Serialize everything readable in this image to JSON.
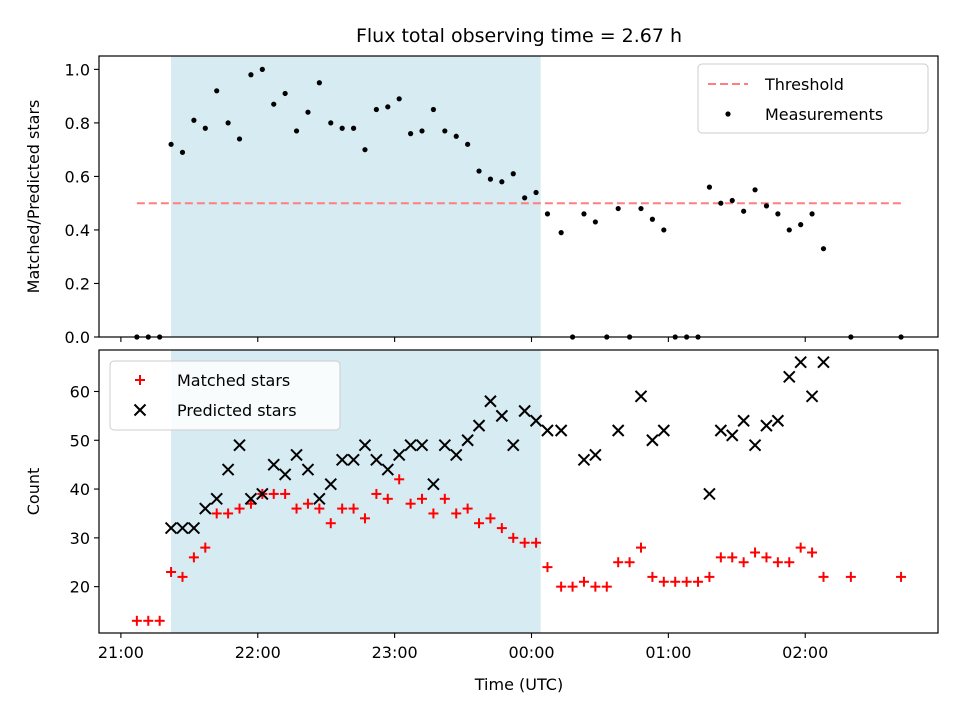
{
  "chart_data": {
    "title": "Flux total observing time = 2.67 h",
    "xlabel": "Time (UTC)",
    "x_ticks": [
      {
        "t": -3,
        "label": "21:00"
      },
      {
        "t": -2,
        "label": "22:00"
      },
      {
        "t": -1,
        "label": "23:00"
      },
      {
        "t": 0,
        "label": "00:00"
      },
      {
        "t": 1,
        "label": "01:00"
      },
      {
        "t": 2,
        "label": "02:00"
      }
    ],
    "xlim": [
      -3.16,
      2.97
    ],
    "observing_window": {
      "start": "21:22",
      "end": "00:04",
      "color": "#add8e6"
    },
    "panels": [
      {
        "type": "scatter",
        "ylabel": "Matched/Predicted stars",
        "ylim": [
          0,
          1.05
        ],
        "y_ticks": [
          "0.0",
          "0.2",
          "0.4",
          "0.6",
          "0.8",
          "1.0"
        ],
        "threshold": {
          "name": "Threshold",
          "value": 0.5,
          "x_range": [
            "21:07",
            "02:42"
          ],
          "color": "#ff7f7f"
        },
        "series": [
          {
            "name": "Measurements",
            "marker": "dot",
            "color": "#000000",
            "points": [
              [
                "21:07",
                0.0
              ],
              [
                "21:12",
                0.0
              ],
              [
                "21:17",
                0.0
              ],
              [
                "21:22",
                0.72
              ],
              [
                "21:27",
                0.69
              ],
              [
                "21:32",
                0.81
              ],
              [
                "21:37",
                0.78
              ],
              [
                "21:42",
                0.92
              ],
              [
                "21:47",
                0.8
              ],
              [
                "21:52",
                0.74
              ],
              [
                "21:57",
                0.98
              ],
              [
                "22:02",
                1.0
              ],
              [
                "22:07",
                0.87
              ],
              [
                "22:12",
                0.91
              ],
              [
                "22:17",
                0.77
              ],
              [
                "22:22",
                0.84
              ],
              [
                "22:27",
                0.95
              ],
              [
                "22:32",
                0.8
              ],
              [
                "22:37",
                0.78
              ],
              [
                "22:42",
                0.78
              ],
              [
                "22:47",
                0.7
              ],
              [
                "22:52",
                0.85
              ],
              [
                "22:57",
                0.86
              ],
              [
                "23:02",
                0.89
              ],
              [
                "23:07",
                0.76
              ],
              [
                "23:12",
                0.77
              ],
              [
                "23:17",
                0.85
              ],
              [
                "23:22",
                0.77
              ],
              [
                "23:27",
                0.75
              ],
              [
                "23:32",
                0.72
              ],
              [
                "23:37",
                0.62
              ],
              [
                "23:42",
                0.59
              ],
              [
                "23:47",
                0.58
              ],
              [
                "23:52",
                0.61
              ],
              [
                "23:57",
                0.52
              ],
              [
                "00:02",
                0.54
              ],
              [
                "00:07",
                0.46
              ],
              [
                "00:13",
                0.39
              ],
              [
                "00:18",
                0.0
              ],
              [
                "00:23",
                0.46
              ],
              [
                "00:28",
                0.43
              ],
              [
                "00:33",
                0.0
              ],
              [
                "00:38",
                0.48
              ],
              [
                "00:43",
                0.0
              ],
              [
                "00:48",
                0.48
              ],
              [
                "00:53",
                0.44
              ],
              [
                "00:58",
                0.4
              ],
              [
                "01:03",
                0.0
              ],
              [
                "01:08",
                0.0
              ],
              [
                "01:13",
                0.0
              ],
              [
                "01:18",
                0.56
              ],
              [
                "01:23",
                0.5
              ],
              [
                "01:28",
                0.51
              ],
              [
                "01:33",
                0.47
              ],
              [
                "01:38",
                0.55
              ],
              [
                "01:43",
                0.49
              ],
              [
                "01:48",
                0.46
              ],
              [
                "01:53",
                0.4
              ],
              [
                "01:58",
                0.42
              ],
              [
                "02:03",
                0.46
              ],
              [
                "02:08",
                0.33
              ],
              [
                "02:20",
                0.0
              ],
              [
                "02:42",
                0.0
              ]
            ]
          }
        ],
        "legend": {
          "position": "top-right",
          "entries": [
            "Threshold",
            "Measurements"
          ]
        }
      },
      {
        "type": "scatter",
        "ylabel": "Count",
        "ylim": [
          10.5,
          68.5
        ],
        "y_ticks": [
          "20",
          "30",
          "40",
          "50",
          "60"
        ],
        "series": [
          {
            "name": "Matched stars",
            "marker": "plus",
            "color": "#ff0000",
            "points": [
              [
                "21:07",
                13
              ],
              [
                "21:12",
                13
              ],
              [
                "21:17",
                13
              ],
              [
                "21:22",
                23
              ],
              [
                "21:27",
                22
              ],
              [
                "21:32",
                26
              ],
              [
                "21:37",
                28
              ],
              [
                "21:42",
                35
              ],
              [
                "21:47",
                35
              ],
              [
                "21:52",
                36
              ],
              [
                "21:57",
                37
              ],
              [
                "22:02",
                39
              ],
              [
                "22:07",
                39
              ],
              [
                "22:12",
                39
              ],
              [
                "22:17",
                36
              ],
              [
                "22:22",
                37
              ],
              [
                "22:27",
                36
              ],
              [
                "22:32",
                33
              ],
              [
                "22:37",
                36
              ],
              [
                "22:42",
                36
              ],
              [
                "22:47",
                34
              ],
              [
                "22:52",
                39
              ],
              [
                "22:57",
                38
              ],
              [
                "23:02",
                42
              ],
              [
                "23:07",
                37
              ],
              [
                "23:12",
                38
              ],
              [
                "23:17",
                35
              ],
              [
                "23:22",
                38
              ],
              [
                "23:27",
                35
              ],
              [
                "23:32",
                36
              ],
              [
                "23:37",
                33
              ],
              [
                "23:42",
                34
              ],
              [
                "23:47",
                32
              ],
              [
                "23:52",
                30
              ],
              [
                "23:57",
                29
              ],
              [
                "00:02",
                29
              ],
              [
                "00:07",
                24
              ],
              [
                "00:13",
                20
              ],
              [
                "00:18",
                20
              ],
              [
                "00:23",
                21
              ],
              [
                "00:28",
                20
              ],
              [
                "00:33",
                20
              ],
              [
                "00:38",
                25
              ],
              [
                "00:43",
                25
              ],
              [
                "00:48",
                28
              ],
              [
                "00:53",
                22
              ],
              [
                "00:58",
                21
              ],
              [
                "01:03",
                21
              ],
              [
                "01:08",
                21
              ],
              [
                "01:13",
                21
              ],
              [
                "01:18",
                22
              ],
              [
                "01:23",
                26
              ],
              [
                "01:28",
                26
              ],
              [
                "01:33",
                25
              ],
              [
                "01:38",
                27
              ],
              [
                "01:43",
                26
              ],
              [
                "01:48",
                25
              ],
              [
                "01:53",
                25
              ],
              [
                "01:58",
                28
              ],
              [
                "02:03",
                27
              ],
              [
                "02:08",
                22
              ],
              [
                "02:20",
                22
              ],
              [
                "02:42",
                22
              ]
            ]
          },
          {
            "name": "Predicted stars",
            "marker": "x",
            "color": "#000000",
            "points": [
              [
                "21:22",
                32
              ],
              [
                "21:27",
                32
              ],
              [
                "21:32",
                32
              ],
              [
                "21:37",
                36
              ],
              [
                "21:42",
                38
              ],
              [
                "21:47",
                44
              ],
              [
                "21:52",
                49
              ],
              [
                "21:57",
                38
              ],
              [
                "22:02",
                39
              ],
              [
                "22:07",
                45
              ],
              [
                "22:12",
                43
              ],
              [
                "22:17",
                47
              ],
              [
                "22:22",
                44
              ],
              [
                "22:27",
                38
              ],
              [
                "22:32",
                41
              ],
              [
                "22:37",
                46
              ],
              [
                "22:42",
                46
              ],
              [
                "22:47",
                49
              ],
              [
                "22:52",
                46
              ],
              [
                "22:57",
                44
              ],
              [
                "23:02",
                47
              ],
              [
                "23:07",
                49
              ],
              [
                "23:12",
                49
              ],
              [
                "23:17",
                41
              ],
              [
                "23:22",
                49
              ],
              [
                "23:27",
                47
              ],
              [
                "23:32",
                50
              ],
              [
                "23:37",
                53
              ],
              [
                "23:42",
                58
              ],
              [
                "23:47",
                55
              ],
              [
                "23:52",
                49
              ],
              [
                "23:57",
                56
              ],
              [
                "00:02",
                54
              ],
              [
                "00:07",
                52
              ],
              [
                "00:13",
                52
              ],
              [
                "00:23",
                46
              ],
              [
                "00:28",
                47
              ],
              [
                "00:38",
                52
              ],
              [
                "00:48",
                59
              ],
              [
                "00:53",
                50
              ],
              [
                "00:58",
                52
              ],
              [
                "01:18",
                39
              ],
              [
                "01:23",
                52
              ],
              [
                "01:28",
                51
              ],
              [
                "01:33",
                54
              ],
              [
                "01:38",
                49
              ],
              [
                "01:43",
                53
              ],
              [
                "01:48",
                54
              ],
              [
                "01:53",
                63
              ],
              [
                "01:58",
                66
              ],
              [
                "02:03",
                59
              ],
              [
                "02:08",
                66
              ]
            ]
          }
        ],
        "legend": {
          "position": "top-left",
          "entries": [
            "Matched stars",
            "Predicted stars"
          ]
        }
      }
    ]
  }
}
